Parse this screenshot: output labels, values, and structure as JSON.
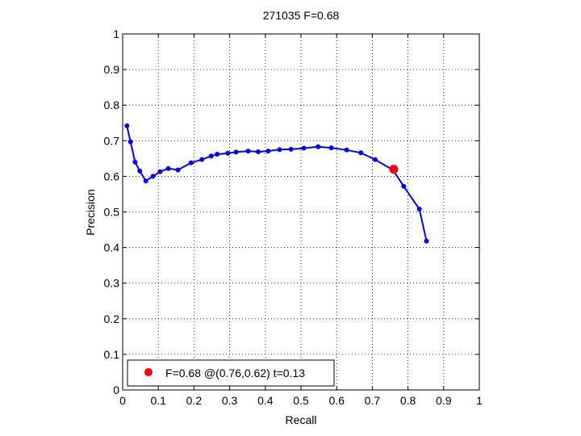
{
  "chart_data": {
    "type": "line",
    "title": "271035 F=0.68",
    "xlabel": "Recall",
    "ylabel": "Precision",
    "xlim": [
      0,
      1
    ],
    "ylim": [
      0,
      1
    ],
    "xticks": [
      "0",
      "0.1",
      "0.2",
      "0.3",
      "0.4",
      "0.5",
      "0.6",
      "0.7",
      "0.8",
      "0.9",
      "1"
    ],
    "yticks": [
      "0",
      "0.1",
      "0.2",
      "0.3",
      "0.4",
      "0.5",
      "0.6",
      "0.7",
      "0.8",
      "0.9",
      "1"
    ],
    "grid": true,
    "legend_position": "bottom-left",
    "series": [
      {
        "color": "#0000ff",
        "x": [
          0.012,
          0.022,
          0.035,
          0.048,
          0.065,
          0.085,
          0.105,
          0.128,
          0.155,
          0.192,
          0.222,
          0.248,
          0.265,
          0.295,
          0.318,
          0.352,
          0.38,
          0.408,
          0.44,
          0.472,
          0.508,
          0.548,
          0.585,
          0.628,
          0.668,
          0.708,
          0.758,
          0.788,
          0.832,
          0.852
        ],
        "y": [
          0.742,
          0.697,
          0.64,
          0.615,
          0.587,
          0.6,
          0.613,
          0.622,
          0.618,
          0.638,
          0.647,
          0.657,
          0.662,
          0.665,
          0.668,
          0.671,
          0.669,
          0.671,
          0.675,
          0.676,
          0.679,
          0.683,
          0.68,
          0.674,
          0.666,
          0.647,
          0.618,
          0.572,
          0.508,
          0.418
        ]
      }
    ],
    "highlight": {
      "x": 0.76,
      "y": 0.62,
      "color": "#ff0000",
      "label": "F=0.68 @(0.76,0.62) t=0.13"
    }
  }
}
